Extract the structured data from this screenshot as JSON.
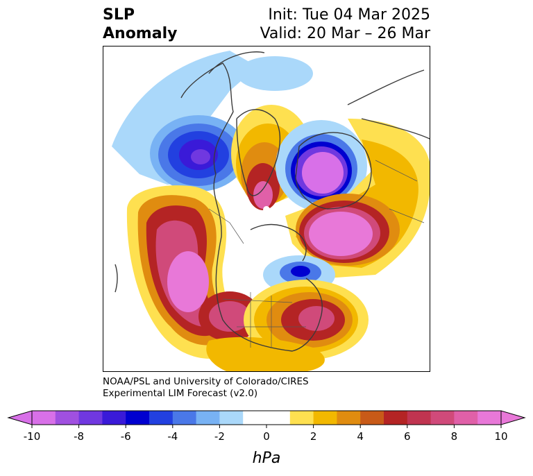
{
  "title": {
    "left_line1": "SLP",
    "left_line2": "Anomaly",
    "right_line1": "Init: Tue 04 Mar 2025",
    "right_line2": "Valid: 20 Mar – 26 Mar"
  },
  "credit": {
    "line1": "NOAA/PSL and University of Colorado/CIRES",
    "line2": "Experimental LIM Forecast (v2.0)"
  },
  "colorbar": {
    "unit_label": "hPa",
    "ticks": [
      "-10",
      "-8",
      "-6",
      "-4",
      "-2",
      "0",
      "2",
      "4",
      "6",
      "8",
      "10"
    ],
    "colors": [
      "#d870e8",
      "#a050e0",
      "#7038e0",
      "#3a1ad8",
      "#0000d0",
      "#2240e0",
      "#4a78e8",
      "#78b2f4",
      "#aad8fa",
      "#ffffff",
      "#ffffff",
      "#fee050",
      "#f2b800",
      "#e08c10",
      "#c85a18",
      "#b42424",
      "#c03450",
      "#d04a7a",
      "#e060a8",
      "#e878d8"
    ],
    "under_color": "#d870e8",
    "over_color": "#e878d8"
  },
  "map": {
    "projection": "north-polar-stereographic",
    "anomaly_centers": [
      {
        "region": "Gulf of Alaska",
        "sign": "negative",
        "peak_hpa": -8
      },
      {
        "region": "Barents / Kara Sea",
        "sign": "negative",
        "peak_hpa": -10
      },
      {
        "region": "Hudson Bay",
        "sign": "negative",
        "peak_hpa": -6
      },
      {
        "region": "North Pacific",
        "sign": "positive",
        "peak_hpa": 10
      },
      {
        "region": "Western US",
        "sign": "positive",
        "peak_hpa": 8
      },
      {
        "region": "Western Atlantic",
        "sign": "positive",
        "peak_hpa": 8
      },
      {
        "region": "Siberia",
        "sign": "positive",
        "peak_hpa": 10
      },
      {
        "region": "Greenland",
        "sign": "positive",
        "peak_hpa": 8
      }
    ]
  }
}
